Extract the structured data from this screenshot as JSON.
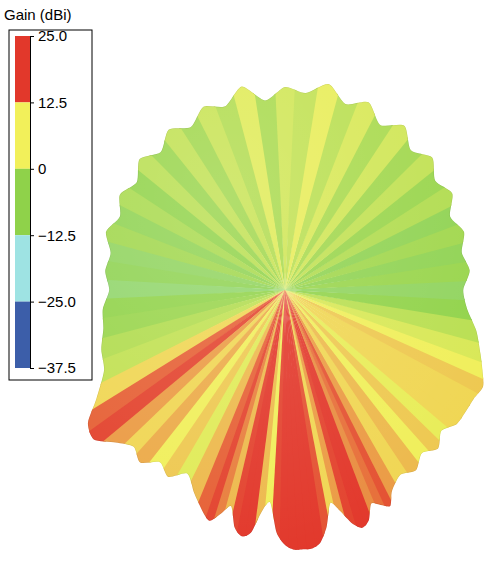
{
  "chart_data": {
    "type": "polar",
    "theta": [
      -180,
      -174,
      -168,
      -162,
      -156,
      -150,
      -144,
      -138,
      -132,
      -126,
      -120,
      -114,
      -108,
      -102,
      -96,
      -90,
      -84,
      -78,
      -72,
      -66,
      -60,
      -56,
      -52,
      -48,
      -44,
      -40,
      -36,
      -32,
      -28,
      -24,
      -20,
      -18,
      -16,
      -14,
      -12,
      -10,
      -8,
      -6,
      -4,
      -2,
      0,
      2,
      4,
      6,
      8,
      10,
      12,
      14,
      16,
      18,
      20,
      22,
      24,
      26,
      28,
      32,
      36,
      40,
      44,
      48,
      52,
      56,
      60,
      64,
      68,
      72,
      78,
      84,
      90,
      96,
      102,
      108,
      114,
      120,
      126,
      132,
      138,
      144,
      150,
      156,
      162,
      168,
      174
    ],
    "values": [
      2,
      -3,
      4,
      -2,
      1,
      -4,
      0,
      -5,
      -1,
      -6,
      -3,
      -7,
      -4,
      -8,
      -7,
      -9,
      -6,
      -5,
      -2,
      0,
      8,
      16,
      18,
      12,
      8,
      11,
      6,
      9,
      4,
      10,
      16,
      18,
      14,
      10,
      18,
      21,
      19,
      10,
      6,
      18,
      23,
      25,
      25,
      25,
      23,
      17,
      8,
      12,
      18,
      21,
      19,
      13,
      15,
      17,
      12,
      8,
      10,
      6,
      9,
      5,
      8,
      8,
      8,
      9,
      6,
      3,
      -1,
      -6,
      -8,
      -5,
      -7,
      -4,
      -7,
      -2,
      -5,
      0,
      -4,
      2,
      -3,
      3,
      -1,
      5,
      0
    ],
    "rlim": [
      -80,
      25
    ],
    "colorbar": {
      "title": "Gain (dBi)",
      "range": [
        -37.5,
        25
      ],
      "ticks": [
        {
          "value": 25,
          "label": "25.0"
        },
        12.5,
        0,
        {
          "value": -12.5,
          "label": "−12.5"
        },
        {
          "value": -25,
          "label": "−25.0"
        },
        {
          "value": -37.5,
          "label": "−37.5"
        }
      ],
      "colors": [
        "#e2382b",
        "#f2f05a",
        "#8fd24a",
        "#9ee3e3",
        "#3c5ea9"
      ]
    }
  }
}
